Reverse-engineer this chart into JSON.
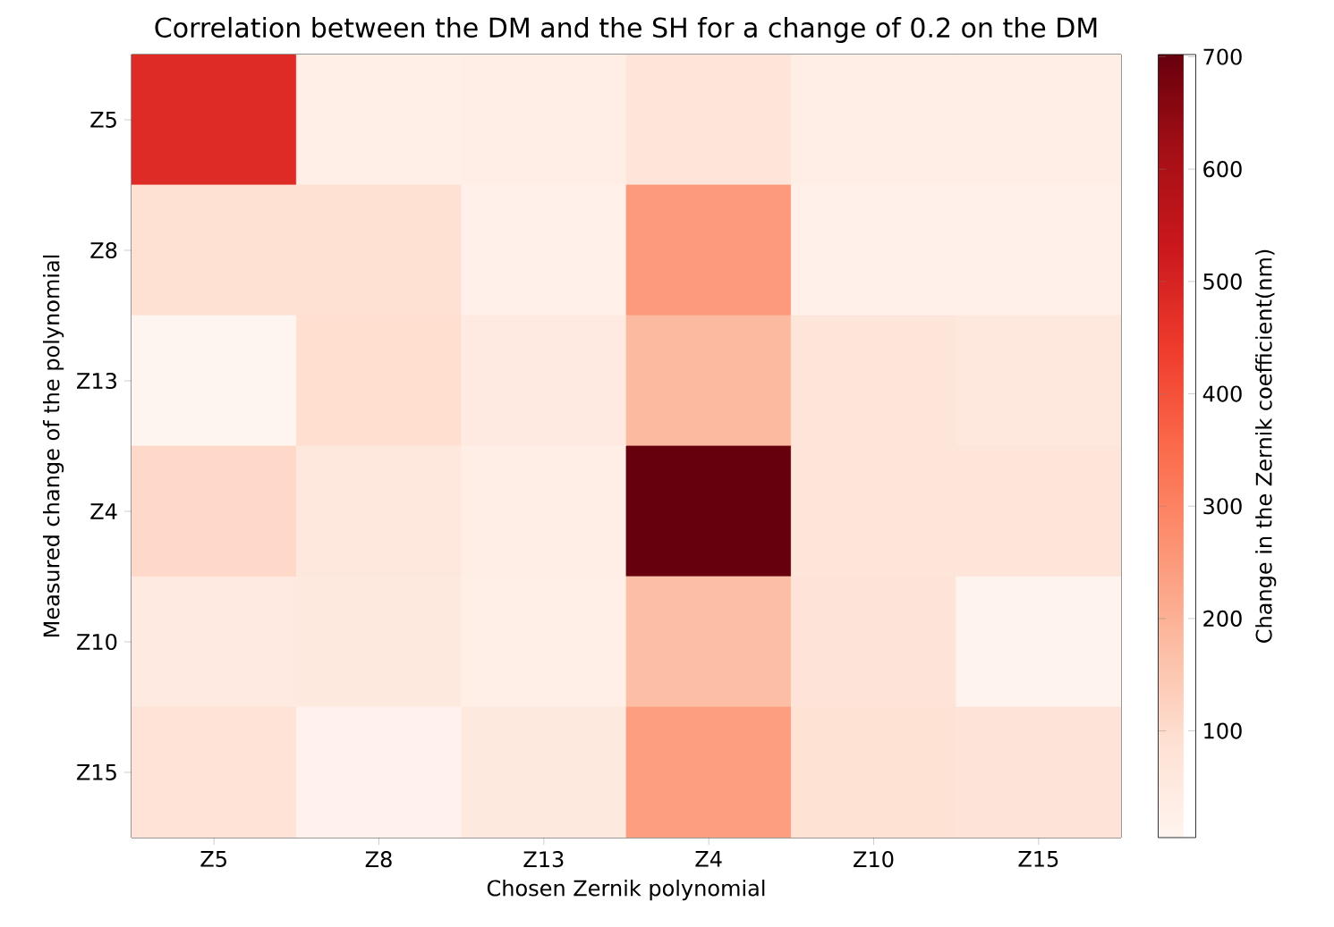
{
  "chart_data": {
    "type": "heatmap",
    "title": "Correlation between the DM and the SH for a change of 0.2 on the DM",
    "xlabel": "Chosen Zernik polynomial",
    "ylabel": "Measured change of the polynomial",
    "clabel": "Change in the Zernik coefficient(nm)",
    "categories": [
      "Z5",
      "Z8",
      "Z13",
      "Z4",
      "Z10",
      "Z15"
    ],
    "y_categories": [
      "Z5",
      "Z8",
      "Z13",
      "Z4",
      "Z10",
      "Z15"
    ],
    "cells": [
      [
        480,
        30,
        35,
        70,
        35,
        35
      ],
      [
        90,
        90,
        25,
        250,
        25,
        25
      ],
      [
        5,
        95,
        50,
        180,
        70,
        60
      ],
      [
        110,
        60,
        35,
        702,
        70,
        70
      ],
      [
        50,
        55,
        30,
        170,
        75,
        15
      ],
      [
        80,
        20,
        55,
        240,
        85,
        75
      ]
    ],
    "clim": [
      5,
      702
    ],
    "cticks": [
      100,
      200,
      300,
      400,
      500,
      600,
      700
    ]
  }
}
